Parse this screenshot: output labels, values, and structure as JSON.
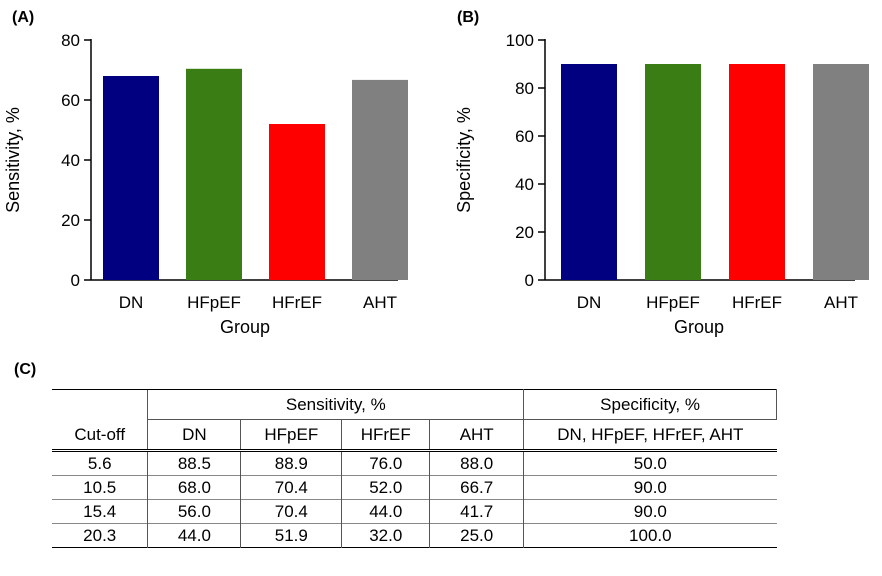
{
  "chart_data": [
    {
      "type": "bar",
      "panel_label": "(A)",
      "categories": [
        "DN",
        "HFpEF",
        "HFrEF",
        "AHT"
      ],
      "values": [
        68.0,
        70.4,
        52.0,
        66.7
      ],
      "colors": [
        "#000080",
        "#3a7d14",
        "#ff0000",
        "#808080"
      ],
      "xlabel": "Group",
      "ylabel": "Sensitivity, %",
      "ylim": [
        0,
        80
      ],
      "yticks": [
        "0",
        "20",
        "40",
        "60",
        "80"
      ],
      "grid": false
    },
    {
      "type": "bar",
      "panel_label": "(B)",
      "categories": [
        "DN",
        "HFpEF",
        "HFrEF",
        "AHT"
      ],
      "values": [
        90.0,
        90.0,
        90.0,
        90.0
      ],
      "colors": [
        "#000080",
        "#3a7d14",
        "#ff0000",
        "#808080"
      ],
      "xlabel": "Group",
      "ylabel": "Specificity, %",
      "ylim": [
        0,
        100
      ],
      "yticks": [
        "0",
        "20",
        "40",
        "60",
        "80",
        "100"
      ],
      "grid": false
    },
    {
      "type": "table",
      "panel_label": "(C)",
      "group_headers": [
        "Sensitivity, %",
        "Specificity, %"
      ],
      "columns": [
        "Cut-off",
        "DN",
        "HFpEF",
        "HFrEF",
        "AHT",
        "DN, HFpEF, HFrEF, AHT"
      ],
      "rows": [
        [
          "5.6",
          "88.5",
          "88.9",
          "76.0",
          "88.0",
          "50.0"
        ],
        [
          "10.5",
          "68.0",
          "70.4",
          "52.0",
          "66.7",
          "90.0"
        ],
        [
          "15.4",
          "56.0",
          "70.4",
          "44.0",
          "41.7",
          "90.0"
        ],
        [
          "20.3",
          "44.0",
          "51.9",
          "32.0",
          "25.0",
          "100.0"
        ]
      ]
    }
  ]
}
